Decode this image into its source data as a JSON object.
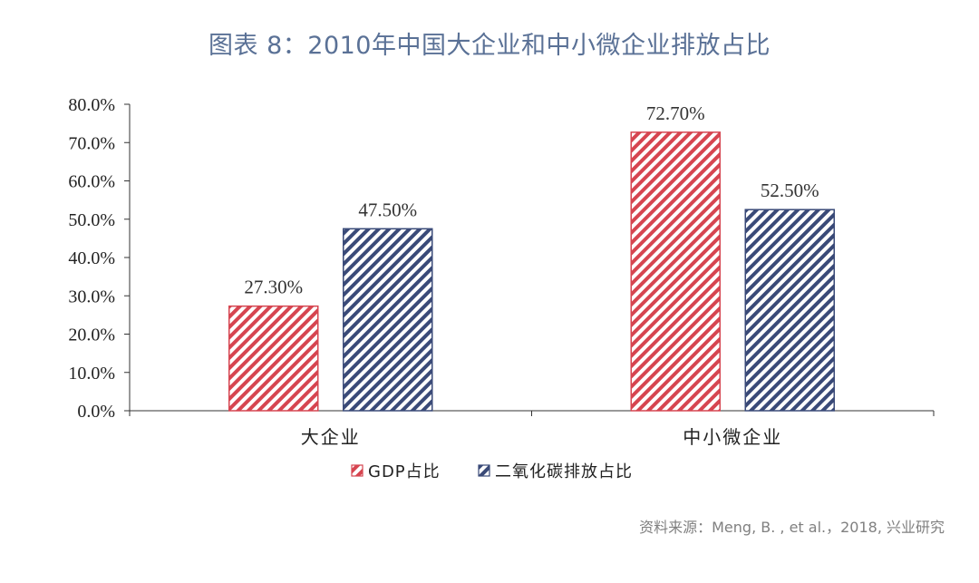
{
  "title": "图表 8：2010年中国大企业和中小微企业排放占比",
  "source": "资料来源：Meng, B. , et al.，2018, 兴业研究",
  "colors": {
    "title": "#5a7196",
    "gdp": "#d64550",
    "co2": "#3a4a78",
    "axis": "#333333",
    "source": "#808080"
  },
  "chart_data": {
    "type": "bar",
    "categories": [
      "大企业",
      "中小微企业"
    ],
    "series": [
      {
        "name": "GDP占比",
        "values": [
          27.3,
          72.7
        ],
        "labels": [
          "27.30%",
          "72.70%"
        ],
        "color": "#d64550",
        "pattern": "diagonal-stripes"
      },
      {
        "name": "二氧化碳排放占比",
        "values": [
          47.5,
          52.5
        ],
        "labels": [
          "47.50%",
          "52.50%"
        ],
        "color": "#3a4a78",
        "pattern": "diagonal-stripes"
      }
    ],
    "ylim": [
      0,
      80
    ],
    "yticks": [
      0,
      10,
      20,
      30,
      40,
      50,
      60,
      70,
      80
    ],
    "ytick_labels": [
      "0.0%",
      "10.0%",
      "20.0%",
      "30.0%",
      "40.0%",
      "50.0%",
      "60.0%",
      "70.0%",
      "80.0%"
    ],
    "legend": "bottom",
    "grid": false
  }
}
